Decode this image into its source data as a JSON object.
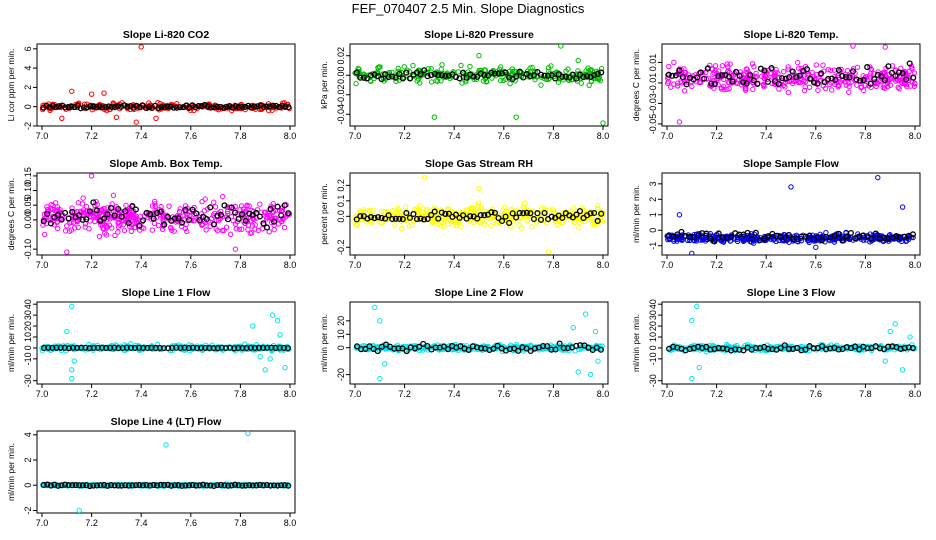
{
  "figure_title": "FEF_070407  2.5 Min. Slope Diagnostics",
  "chart_data": [
    {
      "type": "scatter",
      "title": "Slope Li-820 CO2",
      "ylabel": "Li cor ppm per min.",
      "xlim": [
        7.0,
        8.0
      ],
      "ylim": [
        -2,
        6.5
      ],
      "x_ticks": [
        "7.0",
        "7.2",
        "7.4",
        "7.6",
        "7.8",
        "8.0"
      ],
      "y_ticks": [
        "-2",
        "0",
        "2",
        "4",
        "6"
      ],
      "y_tick_values": [
        -2,
        0,
        2,
        4,
        6
      ],
      "color": "#ff0000",
      "main": {
        "base": 0,
        "spread": 0.35,
        "n": 220
      },
      "outliers": [
        [
          7.4,
          6.2
        ],
        [
          7.38,
          -1.6
        ],
        [
          7.12,
          1.6
        ],
        [
          7.08,
          -1.2
        ],
        [
          7.2,
          1.3
        ],
        [
          7.3,
          -1.1
        ],
        [
          7.46,
          -1.2
        ],
        [
          7.25,
          1.4
        ]
      ],
      "black": {
        "base": 0,
        "spread": 0.15,
        "n": 80
      }
    },
    {
      "type": "scatter",
      "title": "Slope Li-820 Pressure",
      "ylabel": "kPa per min.",
      "xlim": [
        7.0,
        8.0
      ],
      "ylim": [
        -0.052,
        0.032
      ],
      "x_ticks": [
        "7.0",
        "7.2",
        "7.4",
        "7.6",
        "7.8",
        "8.0"
      ],
      "y_ticks": [
        "-0.04",
        "-0.02",
        "0.00",
        "0.02"
      ],
      "y_tick_values": [
        -0.04,
        -0.02,
        0,
        0.02
      ],
      "color": "#00bb00",
      "main": {
        "base": 0,
        "spread": 0.008,
        "n": 280
      },
      "outliers": [
        [
          7.32,
          -0.043
        ],
        [
          7.65,
          -0.043
        ],
        [
          7.83,
          0.03
        ],
        [
          8.0,
          -0.049
        ],
        [
          7.5,
          0.02
        ],
        [
          7.9,
          0.015
        ]
      ],
      "black": {
        "base": 0,
        "spread": 0.004,
        "n": 70
      }
    },
    {
      "type": "scatter",
      "title": "Slope Li-820 Temp.",
      "ylabel": "degrees C per min.",
      "xlim": [
        7.0,
        8.0
      ],
      "ylim": [
        -0.052,
        0.028
      ],
      "x_ticks": [
        "7.0",
        "7.2",
        "7.4",
        "7.6",
        "7.8",
        "8.0"
      ],
      "y_ticks": [
        "-0.05",
        "-0.03",
        "-0.01",
        "0.01"
      ],
      "y_tick_values": [
        -0.05,
        -0.03,
        -0.01,
        0.01
      ],
      "color": "#ff00ff",
      "main": {
        "base": -0.005,
        "spread": 0.012,
        "n": 380
      },
      "outliers": [
        [
          7.05,
          -0.048
        ],
        [
          7.88,
          0.025
        ],
        [
          7.75,
          0.026
        ]
      ],
      "black": {
        "base": -0.004,
        "spread": 0.01,
        "n": 70
      }
    },
    {
      "type": "scatter",
      "title": "Slope Amb. Box Temp.",
      "ylabel": "degrees C per min.",
      "xlim": [
        7.0,
        8.0
      ],
      "ylim": [
        -0.12,
        0.16
      ],
      "x_ticks": [
        "7.0",
        "7.2",
        "7.4",
        "7.6",
        "7.8",
        "8.0"
      ],
      "y_ticks": [
        "-0.10",
        "0.00",
        "0.05",
        "0.10",
        "0.15"
      ],
      "y_tick_values": [
        -0.1,
        0,
        0.05,
        0.1,
        0.15
      ],
      "color": "#ff00ff",
      "main": {
        "base": 0.01,
        "spread": 0.05,
        "n": 420
      },
      "outliers": [
        [
          7.1,
          -0.11
        ],
        [
          7.78,
          -0.1
        ],
        [
          7.2,
          0.15
        ]
      ],
      "black": {
        "base": 0.01,
        "spread": 0.04,
        "n": 70
      }
    },
    {
      "type": "scatter",
      "title": "Slope Gas Stream RH",
      "ylabel": "percent per min.",
      "xlim": [
        7.0,
        8.0
      ],
      "ylim": [
        -0.25,
        0.28
      ],
      "x_ticks": [
        "7.0",
        "7.2",
        "7.4",
        "7.6",
        "7.8",
        "8.0"
      ],
      "y_ticks": [
        "-0.2",
        "0.0",
        "0.1",
        "0.2"
      ],
      "y_tick_values": [
        -0.2,
        0,
        0.1,
        0.2
      ],
      "color": "#ffff00",
      "main": {
        "base": 0,
        "spread": 0.06,
        "n": 380
      },
      "outliers": [
        [
          7.28,
          0.25
        ],
        [
          7.78,
          -0.23
        ],
        [
          7.5,
          0.18
        ]
      ],
      "black": {
        "base": 0,
        "spread": 0.04,
        "n": 70
      }
    },
    {
      "type": "scatter",
      "title": "Slope Sample Flow",
      "ylabel": "ml/min per min.",
      "xlim": [
        7.0,
        8.0
      ],
      "ylim": [
        -1.6,
        3.7
      ],
      "x_ticks": [
        "7.0",
        "7.2",
        "7.4",
        "7.6",
        "7.8",
        "8.0"
      ],
      "y_ticks": [
        "-1",
        "0",
        "1",
        "2",
        "3"
      ],
      "y_tick_values": [
        -1,
        0,
        1,
        2,
        3
      ],
      "color": "#0000ee",
      "main": {
        "base": -0.5,
        "spread": 0.25,
        "n": 380
      },
      "outliers": [
        [
          7.85,
          3.4
        ],
        [
          7.5,
          2.8
        ],
        [
          7.05,
          1.0
        ],
        [
          7.95,
          1.5
        ],
        [
          7.1,
          -1.5
        ],
        [
          7.6,
          -1.1
        ]
      ],
      "black": {
        "base": -0.4,
        "spread": 0.3,
        "n": 60
      }
    },
    {
      "type": "scatter",
      "title": "Slope Line 1 Flow",
      "ylabel": "ml/min per min.",
      "xlim": [
        7.0,
        8.0
      ],
      "ylim": [
        -33,
        42
      ],
      "x_ticks": [
        "7.0",
        "7.2",
        "7.4",
        "7.6",
        "7.8",
        "8.0"
      ],
      "y_ticks": [
        "-30",
        "-10",
        "0",
        "10",
        "20",
        "30",
        "40"
      ],
      "y_tick_values": [
        -30,
        -10,
        0,
        10,
        20,
        30,
        40
      ],
      "color": "#00e5ee",
      "main": {
        "base": 0,
        "spread": 2.5,
        "n": 300
      },
      "outliers": [
        [
          7.12,
          38
        ],
        [
          7.12,
          -20
        ],
        [
          7.12,
          -28
        ],
        [
          7.1,
          15
        ],
        [
          7.13,
          -12
        ],
        [
          7.93,
          30
        ],
        [
          7.95,
          25
        ],
        [
          7.9,
          -20
        ],
        [
          7.98,
          -18
        ],
        [
          7.85,
          20
        ],
        [
          7.92,
          -10
        ],
        [
          7.96,
          12
        ],
        [
          7.88,
          -8
        ]
      ],
      "black": {
        "base": 0,
        "spread": 0.3,
        "n": 60
      }
    },
    {
      "type": "scatter",
      "title": "Slope Line 2 Flow",
      "ylabel": "ml/min per min.",
      "xlim": [
        7.0,
        8.0
      ],
      "ylim": [
        -27,
        34
      ],
      "x_ticks": [
        "7.0",
        "7.2",
        "7.4",
        "7.6",
        "7.8",
        "8.0"
      ],
      "y_ticks": [
        "-20",
        "0",
        "10",
        "20"
      ],
      "y_tick_values": [
        -20,
        0,
        10,
        20
      ],
      "color": "#00e5ee",
      "main": {
        "base": 0,
        "spread": 2.0,
        "n": 300
      },
      "outliers": [
        [
          7.1,
          -23
        ],
        [
          7.08,
          30
        ],
        [
          7.1,
          20
        ],
        [
          7.12,
          -12
        ],
        [
          7.93,
          25
        ],
        [
          7.95,
          -20
        ],
        [
          7.9,
          -18
        ],
        [
          7.98,
          -10
        ],
        [
          7.88,
          15
        ],
        [
          7.97,
          12
        ]
      ],
      "black": {
        "base": 0,
        "spread": 2.5,
        "n": 60
      }
    },
    {
      "type": "scatter",
      "title": "Slope Line 3 Flow",
      "ylabel": "ml/min per min.",
      "xlim": [
        7.0,
        8.0
      ],
      "ylim": [
        -33,
        42
      ],
      "x_ticks": [
        "7.0",
        "7.2",
        "7.4",
        "7.6",
        "7.8",
        "8.0"
      ],
      "y_ticks": [
        "-30",
        "-10",
        "0",
        "10",
        "20",
        "30",
        "40"
      ],
      "y_tick_values": [
        -30,
        -10,
        0,
        10,
        20,
        30,
        40
      ],
      "color": "#00e5ee",
      "main": {
        "base": 0,
        "spread": 2.5,
        "n": 300
      },
      "outliers": [
        [
          7.12,
          38
        ],
        [
          7.1,
          -28
        ],
        [
          7.1,
          25
        ],
        [
          7.13,
          -18
        ],
        [
          7.92,
          22
        ],
        [
          7.95,
          -20
        ],
        [
          7.9,
          15
        ],
        [
          7.88,
          -12
        ],
        [
          7.98,
          10
        ]
      ],
      "black": {
        "base": 0,
        "spread": 2.0,
        "n": 60
      }
    },
    {
      "type": "scatter",
      "title": "Slope Line 4 (LT) Flow",
      "ylabel": "ml/min per min.",
      "xlim": [
        7.0,
        8.0
      ],
      "ylim": [
        -2.2,
        4.3
      ],
      "x_ticks": [
        "7.0",
        "7.2",
        "7.4",
        "7.6",
        "7.8",
        "8.0"
      ],
      "y_ticks": [
        "-2",
        "0",
        "2",
        "4"
      ],
      "y_tick_values": [
        -2,
        0,
        2,
        4
      ],
      "color": "#00e5ee",
      "main": {
        "base": 0,
        "spread": 0.07,
        "n": 300
      },
      "outliers": [
        [
          7.5,
          3.2
        ],
        [
          7.83,
          4.1
        ],
        [
          7.15,
          -2.0
        ]
      ],
      "black": {
        "base": 0,
        "spread": 0.05,
        "n": 70
      }
    }
  ]
}
